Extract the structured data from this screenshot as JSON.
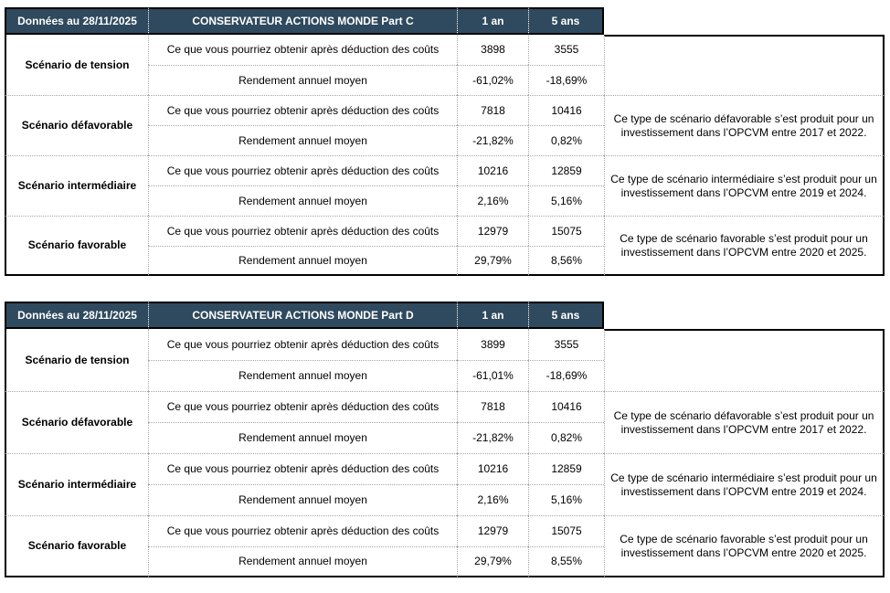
{
  "colors": {
    "header_bg": "#2F4A5E",
    "header_text": "#FFFFFF",
    "border": "#000000",
    "dotted": "#A6A6A6",
    "text": "#000000",
    "page_bg": "#FFFFFF"
  },
  "tables": [
    {
      "header": {
        "date_label": "Données au 28/11/2025",
        "fund_name": "CONSERVATEUR ACTIONS MONDE Part C",
        "col_1y": "1 an",
        "col_5y": "5 ans"
      },
      "row_labels": {
        "obtain": "Ce que vous pourriez obtenir après déduction des coûts",
        "avg_return": "Rendement annuel moyen"
      },
      "scenarios": [
        {
          "name": "Scénario de tension",
          "obtain_1y": "3898",
          "obtain_5y": "3555",
          "return_1y": "-61,02%",
          "return_5y": "-18,69%",
          "note": ""
        },
        {
          "name": "Scénario défavorable",
          "obtain_1y": "7818",
          "obtain_5y": "10416",
          "return_1y": "-21,82%",
          "return_5y": "0,82%",
          "note": "Ce type de scénario défavorable s’est produit pour un investissement dans l’OPCVM entre 2017 et 2022."
        },
        {
          "name": "Scénario intermédiaire",
          "obtain_1y": "10216",
          "obtain_5y": "12859",
          "return_1y": "2,16%",
          "return_5y": "5,16%",
          "note": "Ce type de scénario intermédiaire s’est produit pour un investissement dans l’OPCVM entre 2019 et 2024."
        },
        {
          "name": "Scénario favorable",
          "obtain_1y": "12979",
          "obtain_5y": "15075",
          "return_1y": "29,79%",
          "return_5y": "8,56%",
          "note": "Ce type de scénario favorable s’est produit pour un investissement dans l’OPCVM entre 2020 et 2025."
        }
      ]
    },
    {
      "header": {
        "date_label": "Données au 28/11/2025",
        "fund_name": "CONSERVATEUR ACTIONS MONDE Part D",
        "col_1y": "1 an",
        "col_5y": "5 ans"
      },
      "row_labels": {
        "obtain": "Ce que vous pourriez obtenir après déduction des coûts",
        "avg_return": "Rendement annuel moyen"
      },
      "scenarios": [
        {
          "name": "Scénario de tension",
          "obtain_1y": "3899",
          "obtain_5y": "3555",
          "return_1y": "-61,01%",
          "return_5y": "-18,69%",
          "note": ""
        },
        {
          "name": "Scénario défavorable",
          "obtain_1y": "7818",
          "obtain_5y": "10416",
          "return_1y": "-21,82%",
          "return_5y": "0,82%",
          "note": "Ce type de scénario défavorable s’est produit pour un investissement dans l’OPCVM entre 2017 et 2022."
        },
        {
          "name": "Scénario intermédiaire",
          "obtain_1y": "10216",
          "obtain_5y": "12859",
          "return_1y": "2,16%",
          "return_5y": "5,16%",
          "note": "Ce type de scénario intermédiaire s’est produit pour un investissement dans l’OPCVM entre 2019 et 2024."
        },
        {
          "name": "Scénario favorable",
          "obtain_1y": "12979",
          "obtain_5y": "15075",
          "return_1y": "29,79%",
          "return_5y": "8,55%",
          "note": "Ce type de scénario favorable s’est produit pour un investissement dans l’OPCVM entre 2020 et 2025."
        }
      ]
    }
  ]
}
